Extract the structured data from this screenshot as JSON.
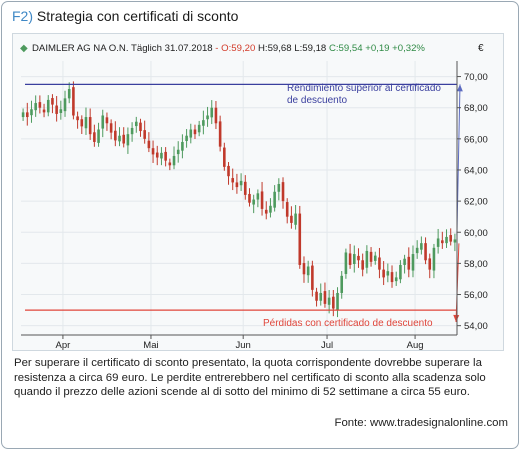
{
  "title": {
    "tag": "F2)",
    "text": "Strategia con certificati di sconto"
  },
  "chart_data": {
    "type": "candlestick",
    "header": {
      "instrument": "DAIMLER AG NA O.N.",
      "interval": "Täglich",
      "date": "31.07.2018",
      "open": "- O:59,20",
      "high": "H:59,68",
      "low": "L:59,18",
      "close": "C:59,54",
      "change": "+0,19 +0,32%"
    },
    "currency": "€",
    "ylim": [
      53.4,
      71.0
    ],
    "yticks": [
      "70,00",
      "68,00",
      "66,00",
      "64,00",
      "62,00",
      "60,00",
      "58,00",
      "56,00",
      "54,00"
    ],
    "ytick_values": [
      70,
      68,
      66,
      64,
      62,
      60,
      58,
      56,
      54
    ],
    "months": [
      "Apr",
      "Mai",
      "Jun",
      "Jul",
      "Aug"
    ],
    "month_positions": [
      10,
      31,
      53,
      73,
      94
    ],
    "n_days": 104,
    "upper_level": 69.5,
    "lower_level": 55.0,
    "annotation_upper": [
      "Rendimiento superior al certificado",
      "de descuento"
    ],
    "annotation_lower": "Pérdidas con certificado de descuento",
    "colors": {
      "up": "#4e9a5e",
      "down": "#c0392b",
      "upper_line": "#3a3f9e",
      "lower_line": "#e0453a"
    },
    "closes": [
      67.7,
      67.4,
      67.9,
      68.3,
      68.0,
      67.7,
      68.5,
      68.2,
      67.6,
      67.9,
      68.6,
      69.2,
      67.5,
      67.2,
      66.8,
      67.4,
      66.3,
      65.8,
      66.6,
      67.5,
      67.0,
      66.4,
      65.9,
      66.2,
      65.7,
      66.3,
      66.7,
      67.1,
      66.5,
      66.0,
      65.4,
      65.0,
      64.8,
      65.1,
      64.6,
      64.3,
      64.9,
      65.3,
      65.8,
      66.2,
      66.6,
      66.3,
      66.9,
      67.2,
      67.5,
      68.0,
      67.0,
      65.5,
      64.2,
      63.6,
      63.2,
      62.9,
      63.3,
      62.4,
      61.9,
      62.1,
      62.5,
      61.5,
      61.2,
      61.7,
      62.6,
      63.1,
      62.0,
      61.0,
      60.6,
      61.2,
      57.9,
      57.3,
      57.8,
      56.3,
      55.6,
      56.1,
      55.4,
      55.8,
      55.1,
      56.1,
      57.2,
      58.7,
      57.9,
      58.6,
      58.2,
      57.6,
      58.8,
      58.1,
      58.5,
      57.6,
      57.1,
      57.5,
      56.8,
      57.1,
      57.9,
      58.3,
      57.6,
      58.6,
      59.0,
      59.3,
      58.2,
      57.6,
      59.0,
      59.6,
      59.3,
      59.7,
      59.4,
      59.54
    ]
  },
  "caption": "Per superare il certificato di sconto presentato, la quota corrispondente dovrebbe superare la resistenza a circa 69 euro. Le perdite entrerebbero nel certificato di sconto alla scadenza solo quando il prezzo delle azioni scende al di sotto del minimo di 52 settimane a circa 55 euro.",
  "source": "Fonte: www.tradesignalonline.com"
}
